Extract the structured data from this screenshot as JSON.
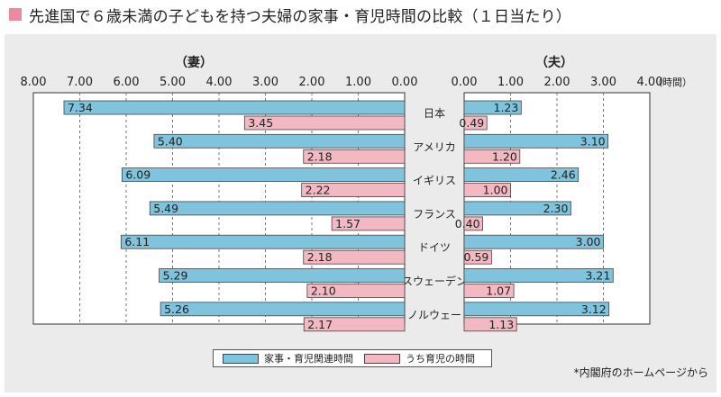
{
  "title": "先進国で６歳未満の子どもを持つ夫婦の家事・育児時間の比較（１日当たり）",
  "source": "*内閣府のホームページから",
  "chart_data": {
    "type": "bar",
    "orientation": "horizontal",
    "categories": [
      "日本",
      "アメリカ",
      "イギリス",
      "フランス",
      "ドイツ",
      "スウェーデン",
      "ノルウェー"
    ],
    "panels": [
      {
        "label": "（妻）",
        "axis_direction": "reversed",
        "xlim": [
          0,
          8
        ],
        "tick_labels": [
          "8.00",
          "7.00",
          "6.00",
          "5.00",
          "4.00",
          "3.00",
          "2.00",
          "1.00",
          "0.00"
        ],
        "series": [
          {
            "name": "家事・育児関連時間",
            "values": [
              7.34,
              5.4,
              6.09,
              5.49,
              6.11,
              5.29,
              5.26
            ]
          },
          {
            "name": "うち育児の時間",
            "values": [
              3.45,
              2.18,
              2.22,
              1.57,
              2.18,
              2.1,
              2.17
            ]
          }
        ]
      },
      {
        "label": "（夫）",
        "axis_direction": "normal",
        "xlim": [
          0,
          4
        ],
        "tick_labels": [
          "0.00",
          "1.00",
          "2.00",
          "3.00",
          "4.00"
        ],
        "unit_label": "（時間）",
        "series": [
          {
            "name": "家事・育児関連時間",
            "values": [
              1.23,
              3.1,
              2.46,
              2.3,
              3.0,
              3.21,
              3.12
            ]
          },
          {
            "name": "うち育児の時間",
            "values": [
              0.49,
              1.2,
              1.0,
              0.4,
              0.59,
              1.07,
              1.13
            ]
          }
        ]
      }
    ],
    "legend": [
      {
        "name": "家事・育児関連時間",
        "color": "#7fc3dc"
      },
      {
        "name": "うち育児の時間",
        "color": "#f4b8c2"
      }
    ],
    "legend_position": "bottom-center"
  }
}
